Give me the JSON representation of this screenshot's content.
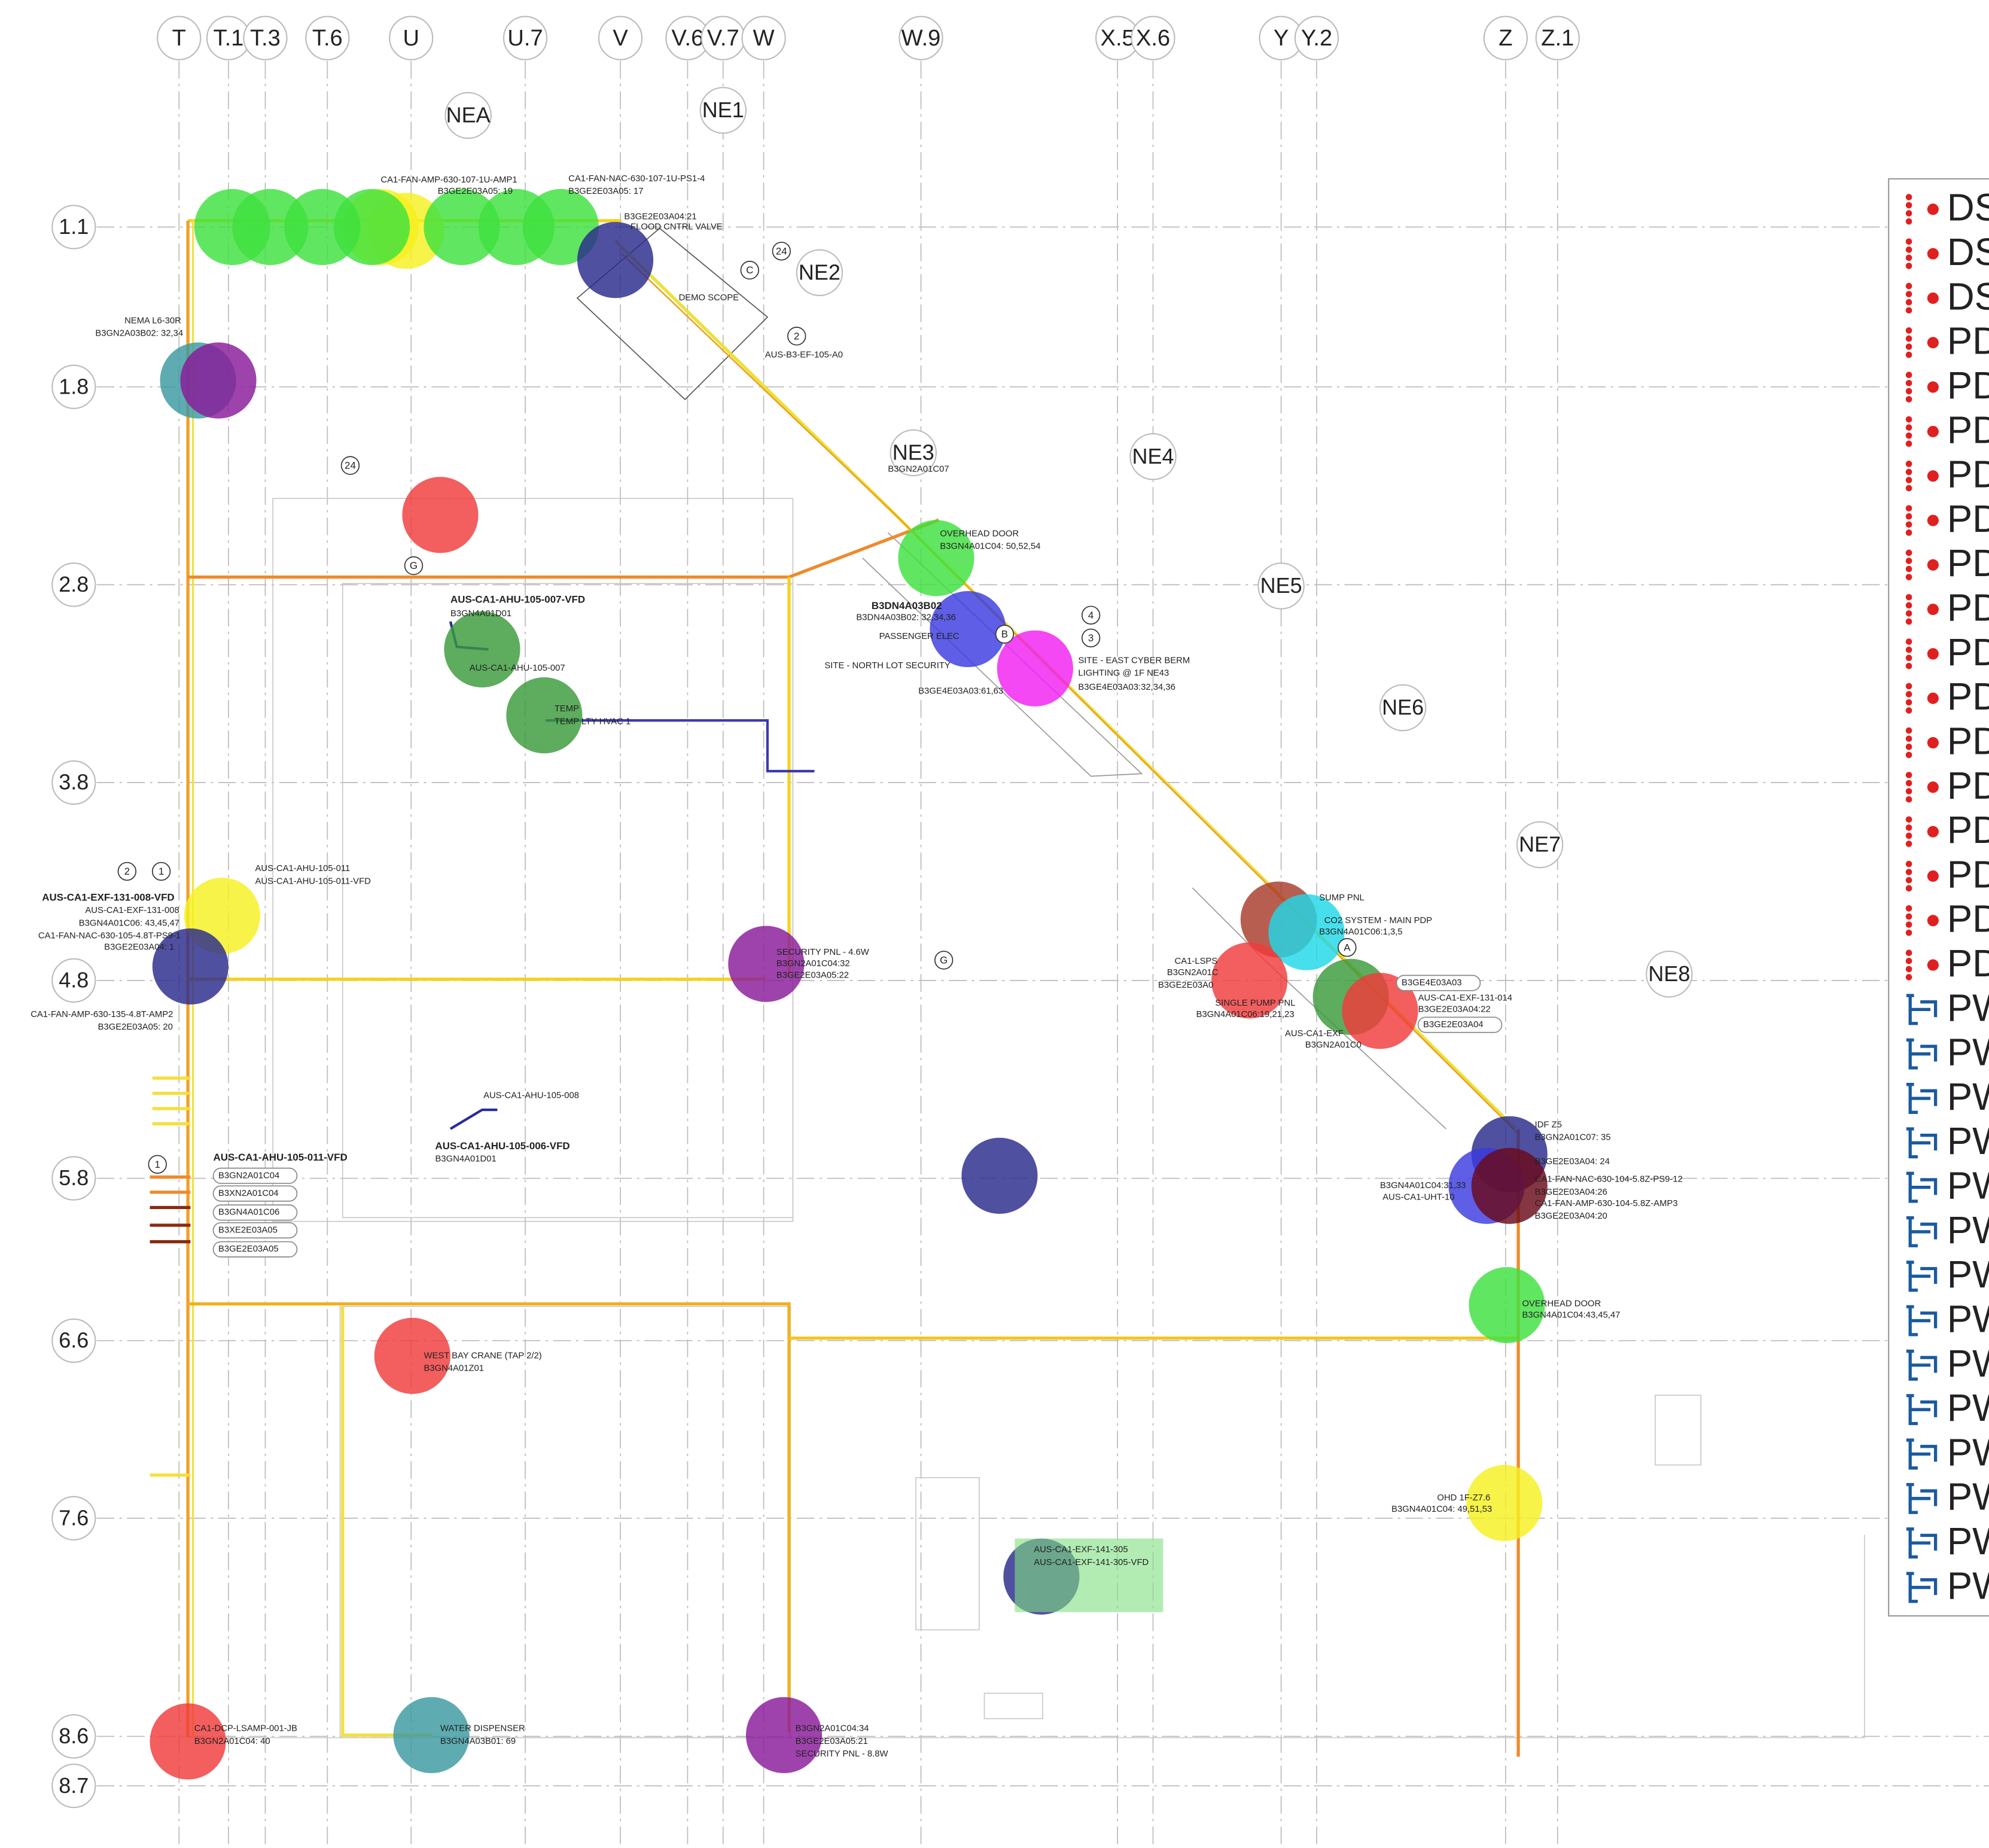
{
  "columns": [
    "T",
    "T.1",
    "T.3",
    "T.6",
    "U",
    "U.7",
    "V",
    "V.6",
    "V.7",
    "W",
    "W.9",
    "X.5",
    "X.6",
    "Y",
    "Y.2",
    "Z",
    "Z.1"
  ],
  "rows": [
    "1.1",
    "1.8",
    "2.8",
    "3.8",
    "4.8",
    "5.8",
    "6.6",
    "7.6",
    "8.6",
    "8.7"
  ],
  "zones": [
    "NEA",
    "NE1",
    "NE2",
    "NE3",
    "NE4",
    "NE5",
    "NE6",
    "NE7",
    "NE8"
  ],
  "annotations": [
    "CA1-FAN-AMP-630-107-1U-AMP1",
    "B3GE2E03A05: 19",
    "CA1-FAN-NAC-630-107-1U-PS1-4",
    "B3GE2E03A05: 17",
    "B3GE2E03A04:21",
    "FLOOD CNTRL VALVE",
    "DEMO SCOPE",
    "AUS-B3-EF-105-A0",
    "NEMA L6-30R",
    "B3GN2A03B02: 32,34",
    "AUS-CA1-AHU-105-007-VFD",
    "B3GN4A01D01",
    "AUS-CA1-AHU-105-007",
    "TEMP",
    "TEMP LTY HVAC 1",
    "OVERHEAD DOOR",
    "B3GN4A01C04: 50,52,54",
    "B3GN2A01C07",
    "B3DN4A03B02",
    "B3DN4A03B02: 32,34,36",
    "PASSENGER ELEC",
    "SITE - NORTH LOT SECURITY",
    "SITE - EAST CYBER BERM",
    "LIGHTING @ 1F NE43",
    "B3GE4E03A03:32,34,36",
    "B3GE4E03A03:61,63",
    "AUS-CA1-AHU-105-011",
    "AUS-CA1-AHU-105-011-VFD",
    "AUS-CA1-EXF-131-008-VFD",
    "AUS-CA1-EXF-131-008",
    "B3GN4A01C06: 43,45,47",
    "CA1-FAN-NAC-630-105-4.8T-PS9-1",
    "B3GE2E03A04: 1",
    "CA1-FAN-AMP-630-135-4.8T-AMP2",
    "B3GE2E03A05: 20",
    "SECURITY PNL - 4.6W",
    "B3GN2A01C04:32",
    "B3GE2E03A05:22",
    "AUS-CA1-AHU-105-008",
    "AUS-CA1-AHU-105-006-VFD",
    "B3GN4A01D01",
    "AUS-CA1-AHU-105-011-VFD",
    "B3GN2A01C04",
    "B3XN2A01C04",
    "B3GN4A01C06",
    "B3XE2E03A05",
    "B3GE2E03A05",
    "WEST BAY CRANE (TAP 2/2)",
    "B3GN4A01Z01",
    "CA1-DCP-LSAMP-001-JB",
    "B3GN2A01C04: 40",
    "WATER DISPENSER",
    "B3GN4A03B01: 69",
    "B3GN2A01C04:34",
    "B3GE2E03A05:21",
    "SECURITY PNL - 8.8W",
    "AUS-CA1-EXF-141-305",
    "AUS-CA1-EXF-141-305-VFD",
    "SUMP PNL",
    "CO2 SYSTEM - MAIN PDP",
    "B3GN4A01C06:1,3,5",
    "CA1-LSPS",
    "B3GN2A01C",
    "B3GE2E03A0",
    "SINGLE PUMP PNL",
    "B3GN4A01C06:19,21,23",
    "B3GE4E03A03",
    "AUS-CA1-EXF-131-014",
    "B3GE2E03A04:22",
    "B3GE2E03A04",
    "AUS-CA1-EXF",
    "B3GN2A01C0",
    "IDF Z5",
    "B3GN2A01C07: 35",
    "B3GE2E03A04: 24",
    "CA1-FAN-NAC-630-104-5.8Z-PS9-12",
    "B3GE2E03A04:26",
    "CA1-FAN-AMP-630-104-5.8Z-AMP3",
    "B3GE2E03A04:20",
    "B3GN4A01C04:31,33",
    "AUS-CA1-UHT-10",
    "OVERHEAD DOOR",
    "B3GN4A01C04:43,45,47",
    "OHD 1F-Z7.6",
    "B3GN4A01C04: 49,51,53"
  ],
  "markers": [
    "2",
    "C",
    "A",
    "B",
    "G",
    "G",
    "4",
    "3",
    "24",
    "24",
    "2",
    "1",
    "1"
  ],
  "legend": [
    "DS",
    "DS",
    "DS",
    "PD",
    "PD",
    "PD",
    "PD",
    "PD",
    "PD",
    "PD",
    "PD",
    "PD",
    "PD",
    "PD",
    "PD",
    "PD",
    "PD",
    "PD",
    "PW",
    "PW",
    "PW",
    "PW",
    "PW",
    "PW",
    "PW",
    "PW",
    "PW",
    "PW",
    "PW",
    "PW",
    "PW",
    "PW"
  ]
}
